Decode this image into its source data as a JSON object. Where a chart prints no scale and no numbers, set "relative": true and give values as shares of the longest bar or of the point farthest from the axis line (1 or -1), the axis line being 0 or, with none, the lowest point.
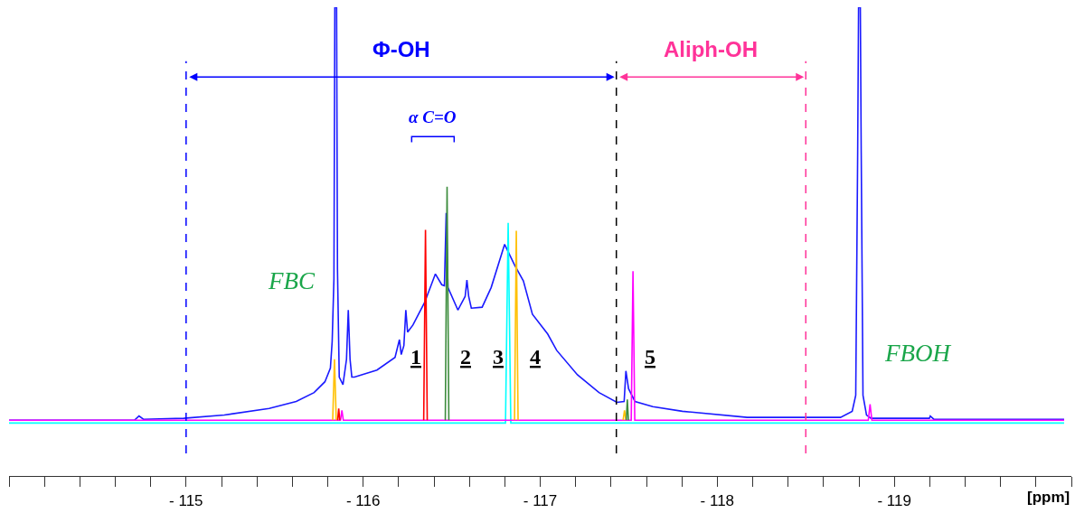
{
  "chart_data": {
    "type": "line",
    "relative": true,
    "xlabel": "[ppm]",
    "xlim": [
      -114.0,
      -120.0
    ],
    "xticks": [
      {
        "value": -114.0,
        "label": null
      },
      {
        "value": -114.2,
        "label": null
      },
      {
        "value": -114.4,
        "label": null
      },
      {
        "value": -114.6,
        "label": null
      },
      {
        "value": -114.8,
        "label": null
      },
      {
        "value": -115,
        "label": "- 115"
      },
      {
        "value": -115.2,
        "label": null
      },
      {
        "value": -115.4,
        "label": null
      },
      {
        "value": -115.6,
        "label": null
      },
      {
        "value": -115.8,
        "label": null
      },
      {
        "value": -116,
        "label": "- 116"
      },
      {
        "value": -116.2,
        "label": null
      },
      {
        "value": -116.4,
        "label": null
      },
      {
        "value": -116.6,
        "label": null
      },
      {
        "value": -116.8,
        "label": null
      },
      {
        "value": -117,
        "label": "- 117"
      },
      {
        "value": -117.2,
        "label": null
      },
      {
        "value": -117.4,
        "label": null
      },
      {
        "value": -117.6,
        "label": null
      },
      {
        "value": -117.8,
        "label": null
      },
      {
        "value": -118,
        "label": "- 118"
      },
      {
        "value": -118.2,
        "label": null
      },
      {
        "value": -118.4,
        "label": null
      },
      {
        "value": -118.6,
        "label": null
      },
      {
        "value": -118.8,
        "label": null
      },
      {
        "value": -119,
        "label": "- 119"
      },
      {
        "value": -119.2,
        "label": null
      },
      {
        "value": -119.4,
        "label": null
      },
      {
        "value": -119.6,
        "label": null
      },
      {
        "value": -119.8,
        "label": null
      },
      {
        "value": -120.0,
        "label": null
      }
    ],
    "marker": "none",
    "line_style": "solid",
    "series": [
      {
        "color": "#1a1aff",
        "x": [
          -114.0,
          -114.708,
          -114.734,
          -114.759,
          -114.987,
          -115.216,
          -115.469,
          -115.622,
          -115.723,
          -115.784,
          -115.815,
          -115.825,
          -115.835,
          -115.84,
          -115.85,
          -115.855,
          -115.865,
          -115.886,
          -115.906,
          -115.916,
          -115.926,
          -115.936,
          -115.951,
          -116.078,
          -116.18,
          -116.205,
          -116.215,
          -116.23,
          -116.241,
          -116.251,
          -116.281,
          -116.347,
          -116.408,
          -116.444,
          -116.459,
          -116.469,
          -116.479,
          -116.535,
          -116.576,
          -116.586,
          -116.596,
          -116.611,
          -116.672,
          -116.723,
          -116.799,
          -116.855,
          -116.905,
          -116.956,
          -117.042,
          -117.093,
          -117.21,
          -117.332,
          -117.433,
          -117.474,
          -117.484,
          -117.499,
          -117.535,
          -117.636,
          -117.803,
          -118.169,
          -118.696,
          -118.762,
          -118.782,
          -118.793,
          -118.798,
          -118.808,
          -118.813,
          -118.823,
          -118.843,
          -118.868,
          -119.198,
          -119.203,
          -119.223,
          -119.959
        ],
        "values": [
          0.119,
          0.119,
          0.128,
          0.121,
          0.123,
          0.13,
          0.144,
          0.159,
          0.178,
          0.201,
          0.23,
          0.287,
          0.421,
          1.0,
          1.0,
          0.441,
          0.211,
          0.195,
          0.249,
          0.354,
          0.249,
          0.211,
          0.211,
          0.226,
          0.253,
          0.291,
          0.259,
          0.278,
          0.354,
          0.307,
          0.322,
          0.37,
          0.431,
          0.408,
          0.406,
          0.561,
          0.402,
          0.354,
          0.383,
          0.418,
          0.383,
          0.358,
          0.36,
          0.402,
          0.494,
          0.45,
          0.416,
          0.345,
          0.303,
          0.268,
          0.216,
          0.178,
          0.157,
          0.159,
          0.224,
          0.186,
          0.159,
          0.148,
          0.138,
          0.125,
          0.125,
          0.138,
          0.172,
          0.69,
          1.0,
          1.0,
          0.69,
          0.172,
          0.13,
          0.123,
          0.123,
          0.128,
          0.121,
          0.121
        ]
      },
      {
        "color": "#00ffff",
        "x": [
          -114.0,
          -116.804,
          -116.819,
          -116.834,
          -119.959
        ],
        "values": [
          0.113,
          0.113,
          0.54,
          0.113,
          0.113
        ]
      },
      {
        "color": "#ff00ff",
        "x": [
          -114.0,
          -115.872,
          -115.88,
          -115.888,
          -117.514,
          -117.524,
          -117.534,
          -118.853,
          -118.863,
          -118.873,
          -119.959
        ],
        "values": [
          0.119,
          0.119,
          0.14,
          0.119,
          0.119,
          0.437,
          0.119,
          0.119,
          0.153,
          0.119,
          0.119
        ]
      },
      {
        "color": "#ffc000",
        "x": [
          -115.828,
          -115.838,
          -115.848,
          -116.3,
          -116.855,
          -116.865,
          -116.875,
          -117.2,
          -117.468,
          -117.476,
          -117.484
        ],
        "values": [
          0.119,
          0.249,
          0.119,
          null,
          0.119,
          0.523,
          0.119,
          null,
          0.119,
          0.14,
          0.119
        ]
      },
      {
        "color": "#ff0000",
        "x": [
          -115.856,
          -115.862,
          -115.868,
          -116.1,
          -116.342,
          -116.352,
          -116.362
        ],
        "values": [
          0.119,
          0.144,
          0.119,
          null,
          0.119,
          0.525,
          0.119
        ]
      },
      {
        "color": "#3c8c3c",
        "x": [
          -116.464,
          -116.474,
          -116.484,
          -117.0,
          -117.486,
          -117.492,
          -117.498
        ],
        "values": [
          0.119,
          0.617,
          0.119,
          null,
          0.119,
          0.163,
          0.119
        ]
      }
    ],
    "ref_lines": [
      {
        "axis": "x",
        "value": -115.0,
        "color": "#0000ff",
        "line_style": "dashed"
      },
      {
        "axis": "x",
        "value": -117.43,
        "color": "#000000",
        "line_style": "dashed"
      },
      {
        "axis": "x",
        "value": -118.5,
        "color": "#ff3399",
        "line_style": "dashed"
      }
    ],
    "annotations": [
      "FBC",
      "FBOH",
      "1",
      "2",
      "3",
      "4",
      "5",
      "Φ-OH",
      "Aliph-OH",
      "α C=O"
    ]
  }
}
